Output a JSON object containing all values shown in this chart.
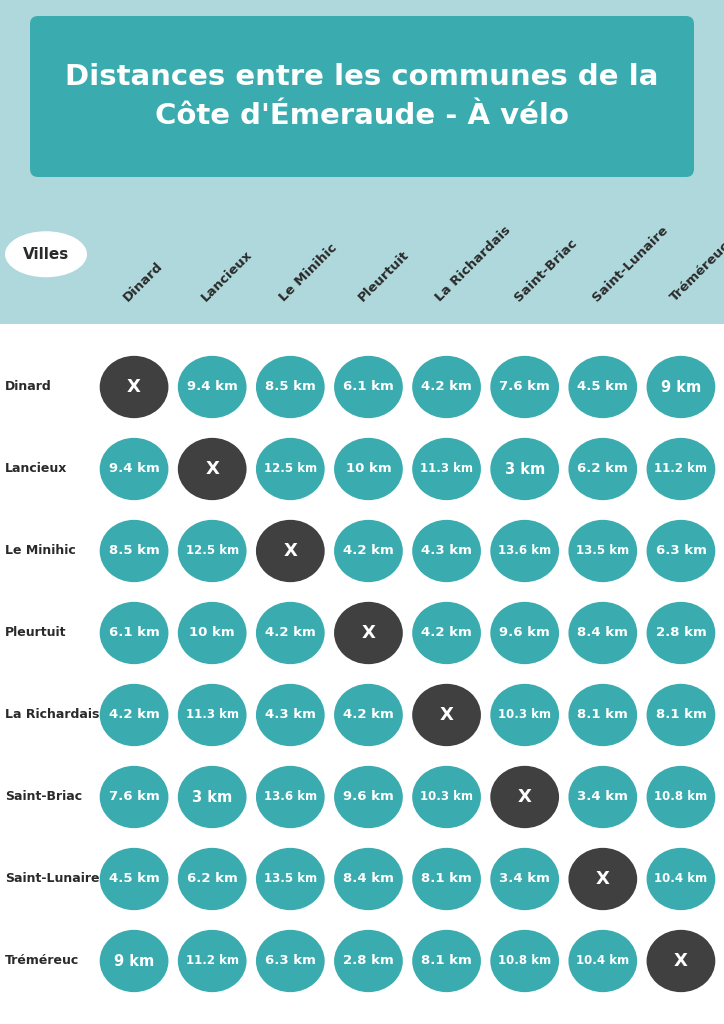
{
  "title": "Distances entre les communes de la\nCôte d'Émeraude - À vélo",
  "title_bg_color": "#3aacb0",
  "title_text_color": "#ffffff",
  "bg_color": "#aed8db",
  "table_bg_color": "#ffffff",
  "teal_color": "#3aacb0",
  "dark_color": "#404040",
  "white_text": "#ffffff",
  "rows": [
    "Dinard",
    "Lancieux",
    "Le Minihic",
    "Pleurtuit",
    "La Richardais",
    "Saint-Briac",
    "Saint-Lunaire",
    "Tréméreuc"
  ],
  "data": [
    [
      "X",
      "9.4 km",
      "8.5 km",
      "6.1 km",
      "4.2 km",
      "7.6 km",
      "4.5 km",
      "9 km"
    ],
    [
      "9.4 km",
      "X",
      "12.5 km",
      "10 km",
      "11.3 km",
      "3 km",
      "6.2 km",
      "11.2 km"
    ],
    [
      "8.5 km",
      "12.5 km",
      "X",
      "4.2 km",
      "4.3 km",
      "13.6 km",
      "13.5 km",
      "6.3 km"
    ],
    [
      "6.1 km",
      "10 km",
      "4.2 km",
      "X",
      "4.2 km",
      "9.6 km",
      "8.4 km",
      "2.8 km"
    ],
    [
      "4.2 km",
      "11.3 km",
      "4.3 km",
      "4.2 km",
      "X",
      "10.3 km",
      "8.1 km",
      "8.1 km"
    ],
    [
      "7.6 km",
      "3 km",
      "13.6 km",
      "9.6 km",
      "10.3 km",
      "X",
      "3.4 km",
      "10.8 km"
    ],
    [
      "4.5 km",
      "6.2 km",
      "13.5 km",
      "8.4 km",
      "8.1 km",
      "3.4 km",
      "X",
      "10.4 km"
    ],
    [
      "9 km",
      "11.2 km",
      "6.3 km",
      "2.8 km",
      "8.1 km",
      "10.8 km",
      "10.4 km",
      "X"
    ]
  ],
  "col_headers": [
    "Dinard",
    "Lancieux",
    "Le Minihic",
    "Pleurtuit",
    "La Richardais",
    "Saint-Briac",
    "Saint-Lunaire",
    "Tréméreuc"
  ],
  "villes_label": "Villes",
  "n_rows": 8,
  "n_cols": 8
}
